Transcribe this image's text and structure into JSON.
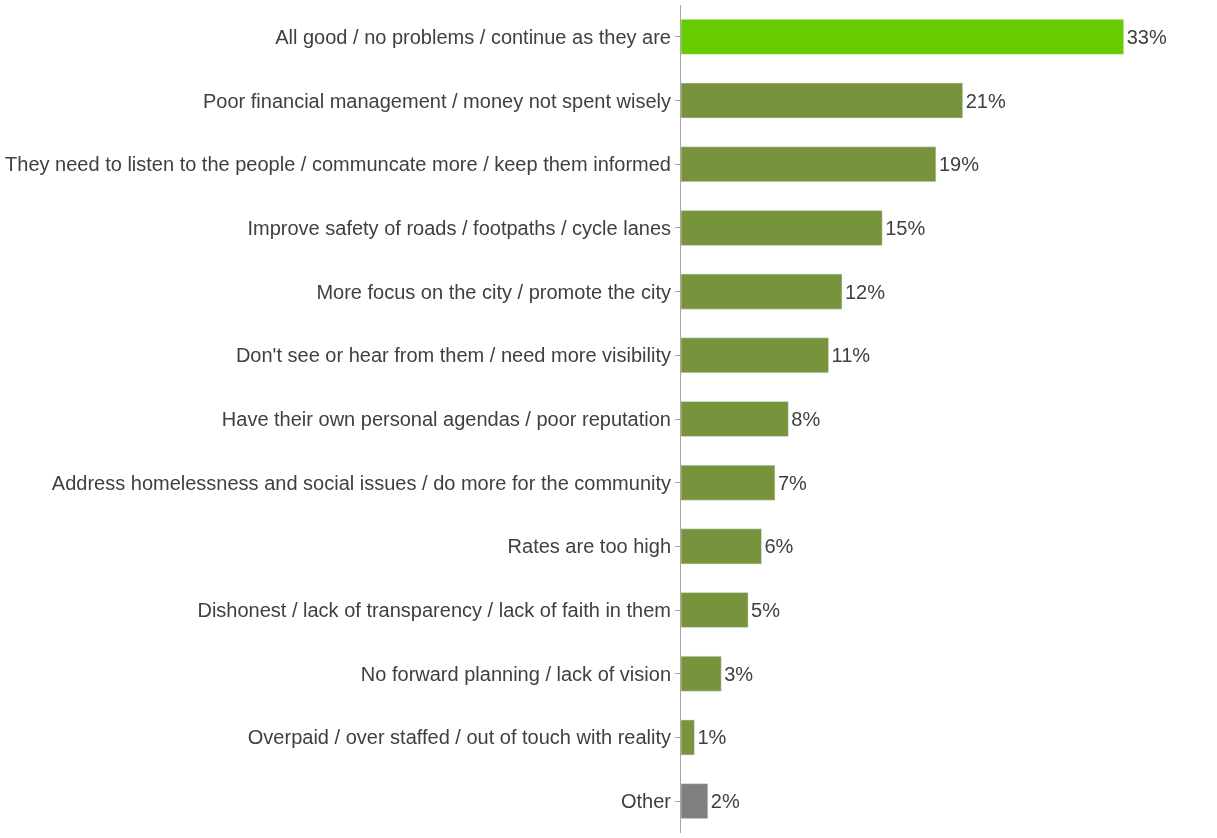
{
  "chart_data": {
    "type": "bar",
    "orientation": "horizontal",
    "categories": [
      "All good / no problems / continue as they are",
      "Poor financial management / money not spent wisely",
      "They need to listen to the people / communcate more / keep them informed",
      "Improve safety of roads / footpaths / cycle lanes",
      "More focus on the city / promote the city",
      "Don't see or hear from them / need more visibility",
      "Have their own personal agendas / poor reputation",
      "Address homelessness and social issues / do more for the community",
      "Rates are too high",
      "Dishonest / lack of transparency / lack of faith in them",
      "No forward planning / lack of vision",
      "Overpaid / over staffed / out of touch with reality",
      "Other"
    ],
    "values": [
      33,
      21,
      19,
      15,
      12,
      11,
      8,
      7,
      6,
      5,
      3,
      1,
      2
    ],
    "value_labels": [
      "33%",
      "21%",
      "19%",
      "15%",
      "12%",
      "11%",
      "8%",
      "7%",
      "6%",
      "5%",
      "3%",
      "1%",
      "2%"
    ],
    "colors": [
      "#66cc00",
      "#77933c",
      "#77933c",
      "#77933c",
      "#77933c",
      "#77933c",
      "#77933c",
      "#77933c",
      "#77933c",
      "#77933c",
      "#77933c",
      "#77933c",
      "#7f7f7f"
    ],
    "legend": false
  }
}
